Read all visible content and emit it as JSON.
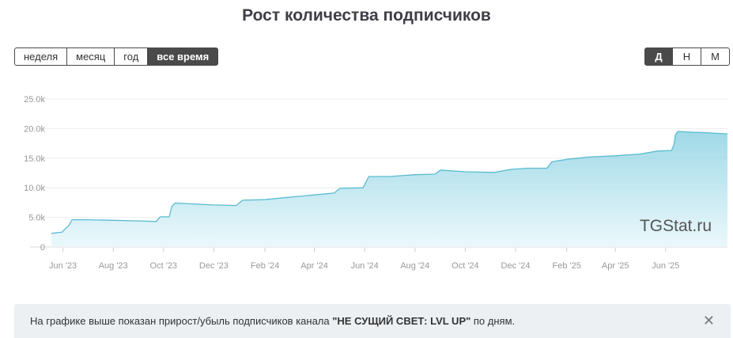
{
  "title": "Рост количества подписчиков",
  "range_buttons": [
    {
      "label": "неделя",
      "active": false
    },
    {
      "label": "месяц",
      "active": false
    },
    {
      "label": "год",
      "active": false
    },
    {
      "label": "все время",
      "active": true
    }
  ],
  "granularity_buttons": [
    {
      "label": "Д",
      "active": true
    },
    {
      "label": "Н",
      "active": false
    },
    {
      "label": "М",
      "active": false
    }
  ],
  "watermark": "TGStat.ru",
  "info": {
    "prefix": "На графике выше показан прирост/убыль подписчиков канала ",
    "channel": "\"НЕ СУЩИЙ СВЕТ: LVL UP\"",
    "suffix": " по дням.",
    "close_glyph": "✕"
  },
  "colors": {
    "line": "#5bbcd1",
    "fill_top": "#8fd3e3",
    "fill_bottom": "#e8f7fb",
    "axis_text": "#999999",
    "grid": "#eeeeee"
  },
  "chart_data": {
    "type": "area",
    "title": "Рост количества подписчиков",
    "xlabel": "",
    "ylabel": "",
    "ylim": [
      0,
      25000
    ],
    "y_ticks": [
      0,
      5000,
      10000,
      15000,
      20000,
      25000
    ],
    "y_tick_labels": [
      "0",
      "5.0k",
      "10.0k",
      "15.0k",
      "20.0k",
      "25.0k"
    ],
    "xlim": [
      "2023-05-18",
      "2025-08-15"
    ],
    "x_ticks": [
      "2023-06-01",
      "2023-08-01",
      "2023-10-01",
      "2023-12-01",
      "2024-02-01",
      "2024-04-01",
      "2024-06-01",
      "2024-08-01",
      "2024-10-01",
      "2024-12-01",
      "2025-02-01",
      "2025-04-01",
      "2025-06-01"
    ],
    "x_tick_labels": [
      "Jun '23",
      "Aug '23",
      "Oct '23",
      "Dec '23",
      "Feb '24",
      "Apr '24",
      "Jun '24",
      "Aug '24",
      "Oct '24",
      "Dec '24",
      "Feb '25",
      "Apr '25",
      "Jun '25"
    ],
    "grid": true,
    "points": [
      [
        "2023-05-18",
        2300
      ],
      [
        "2023-05-31",
        2500
      ],
      [
        "2023-06-04",
        3100
      ],
      [
        "2023-06-08",
        3600
      ],
      [
        "2023-06-12",
        4600
      ],
      [
        "2023-07-01",
        4600
      ],
      [
        "2023-08-01",
        4500
      ],
      [
        "2023-09-01",
        4400
      ],
      [
        "2023-09-22",
        4300
      ],
      [
        "2023-09-27",
        5100
      ],
      [
        "2023-10-08",
        5100
      ],
      [
        "2023-10-11",
        6800
      ],
      [
        "2023-10-15",
        7400
      ],
      [
        "2023-11-01",
        7300
      ],
      [
        "2023-12-01",
        7100
      ],
      [
        "2023-12-28",
        7000
      ],
      [
        "2024-01-05",
        7900
      ],
      [
        "2024-02-01",
        8000
      ],
      [
        "2024-03-01",
        8400
      ],
      [
        "2024-04-01",
        8800
      ],
      [
        "2024-04-25",
        9100
      ],
      [
        "2024-05-02",
        9900
      ],
      [
        "2024-05-30",
        10000
      ],
      [
        "2024-06-06",
        11900
      ],
      [
        "2024-07-01",
        11900
      ],
      [
        "2024-08-01",
        12200
      ],
      [
        "2024-08-25",
        12300
      ],
      [
        "2024-09-01",
        13000
      ],
      [
        "2024-10-01",
        12700
      ],
      [
        "2024-11-05",
        12600
      ],
      [
        "2024-11-25",
        13100
      ],
      [
        "2024-12-15",
        13300
      ],
      [
        "2025-01-08",
        13300
      ],
      [
        "2025-01-14",
        14400
      ],
      [
        "2025-02-01",
        14800
      ],
      [
        "2025-03-01",
        15200
      ],
      [
        "2025-04-01",
        15400
      ],
      [
        "2025-05-01",
        15700
      ],
      [
        "2025-05-22",
        16200
      ],
      [
        "2025-06-08",
        16300
      ],
      [
        "2025-06-11",
        17200
      ],
      [
        "2025-06-13",
        19000
      ],
      [
        "2025-06-16",
        19500
      ],
      [
        "2025-07-01",
        19400
      ],
      [
        "2025-07-20",
        19300
      ],
      [
        "2025-08-15",
        19100
      ]
    ]
  }
}
